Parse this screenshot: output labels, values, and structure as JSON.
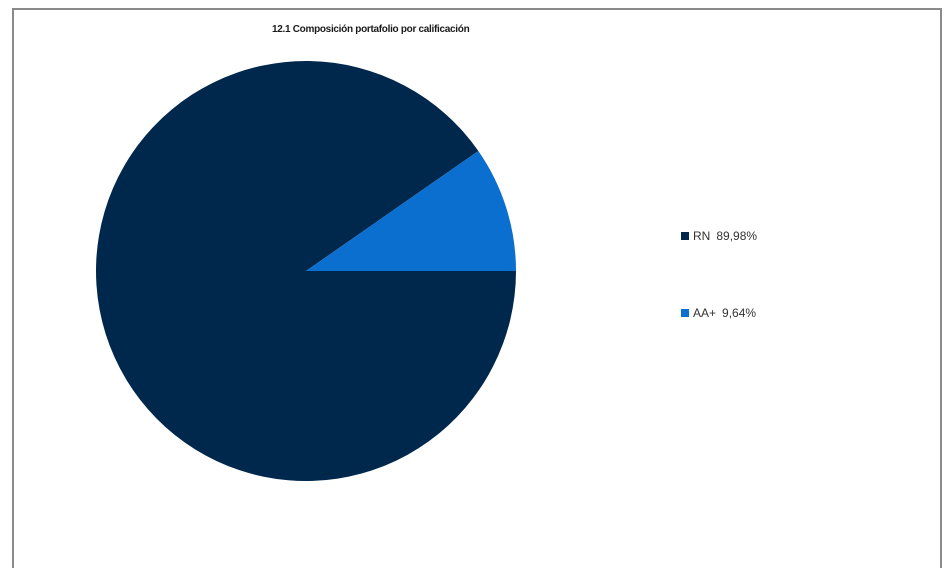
{
  "chart_data": {
    "type": "pie",
    "title": "12.1 Composición portafolio por calificación",
    "slices": [
      {
        "label": "RN",
        "value": 89.98,
        "value_label": "89,98%",
        "color": "#00284d"
      },
      {
        "label": "AA+",
        "value": 9.64,
        "value_label": "9,64%",
        "color": "#0a6fcf"
      }
    ],
    "legend_position": "right"
  }
}
